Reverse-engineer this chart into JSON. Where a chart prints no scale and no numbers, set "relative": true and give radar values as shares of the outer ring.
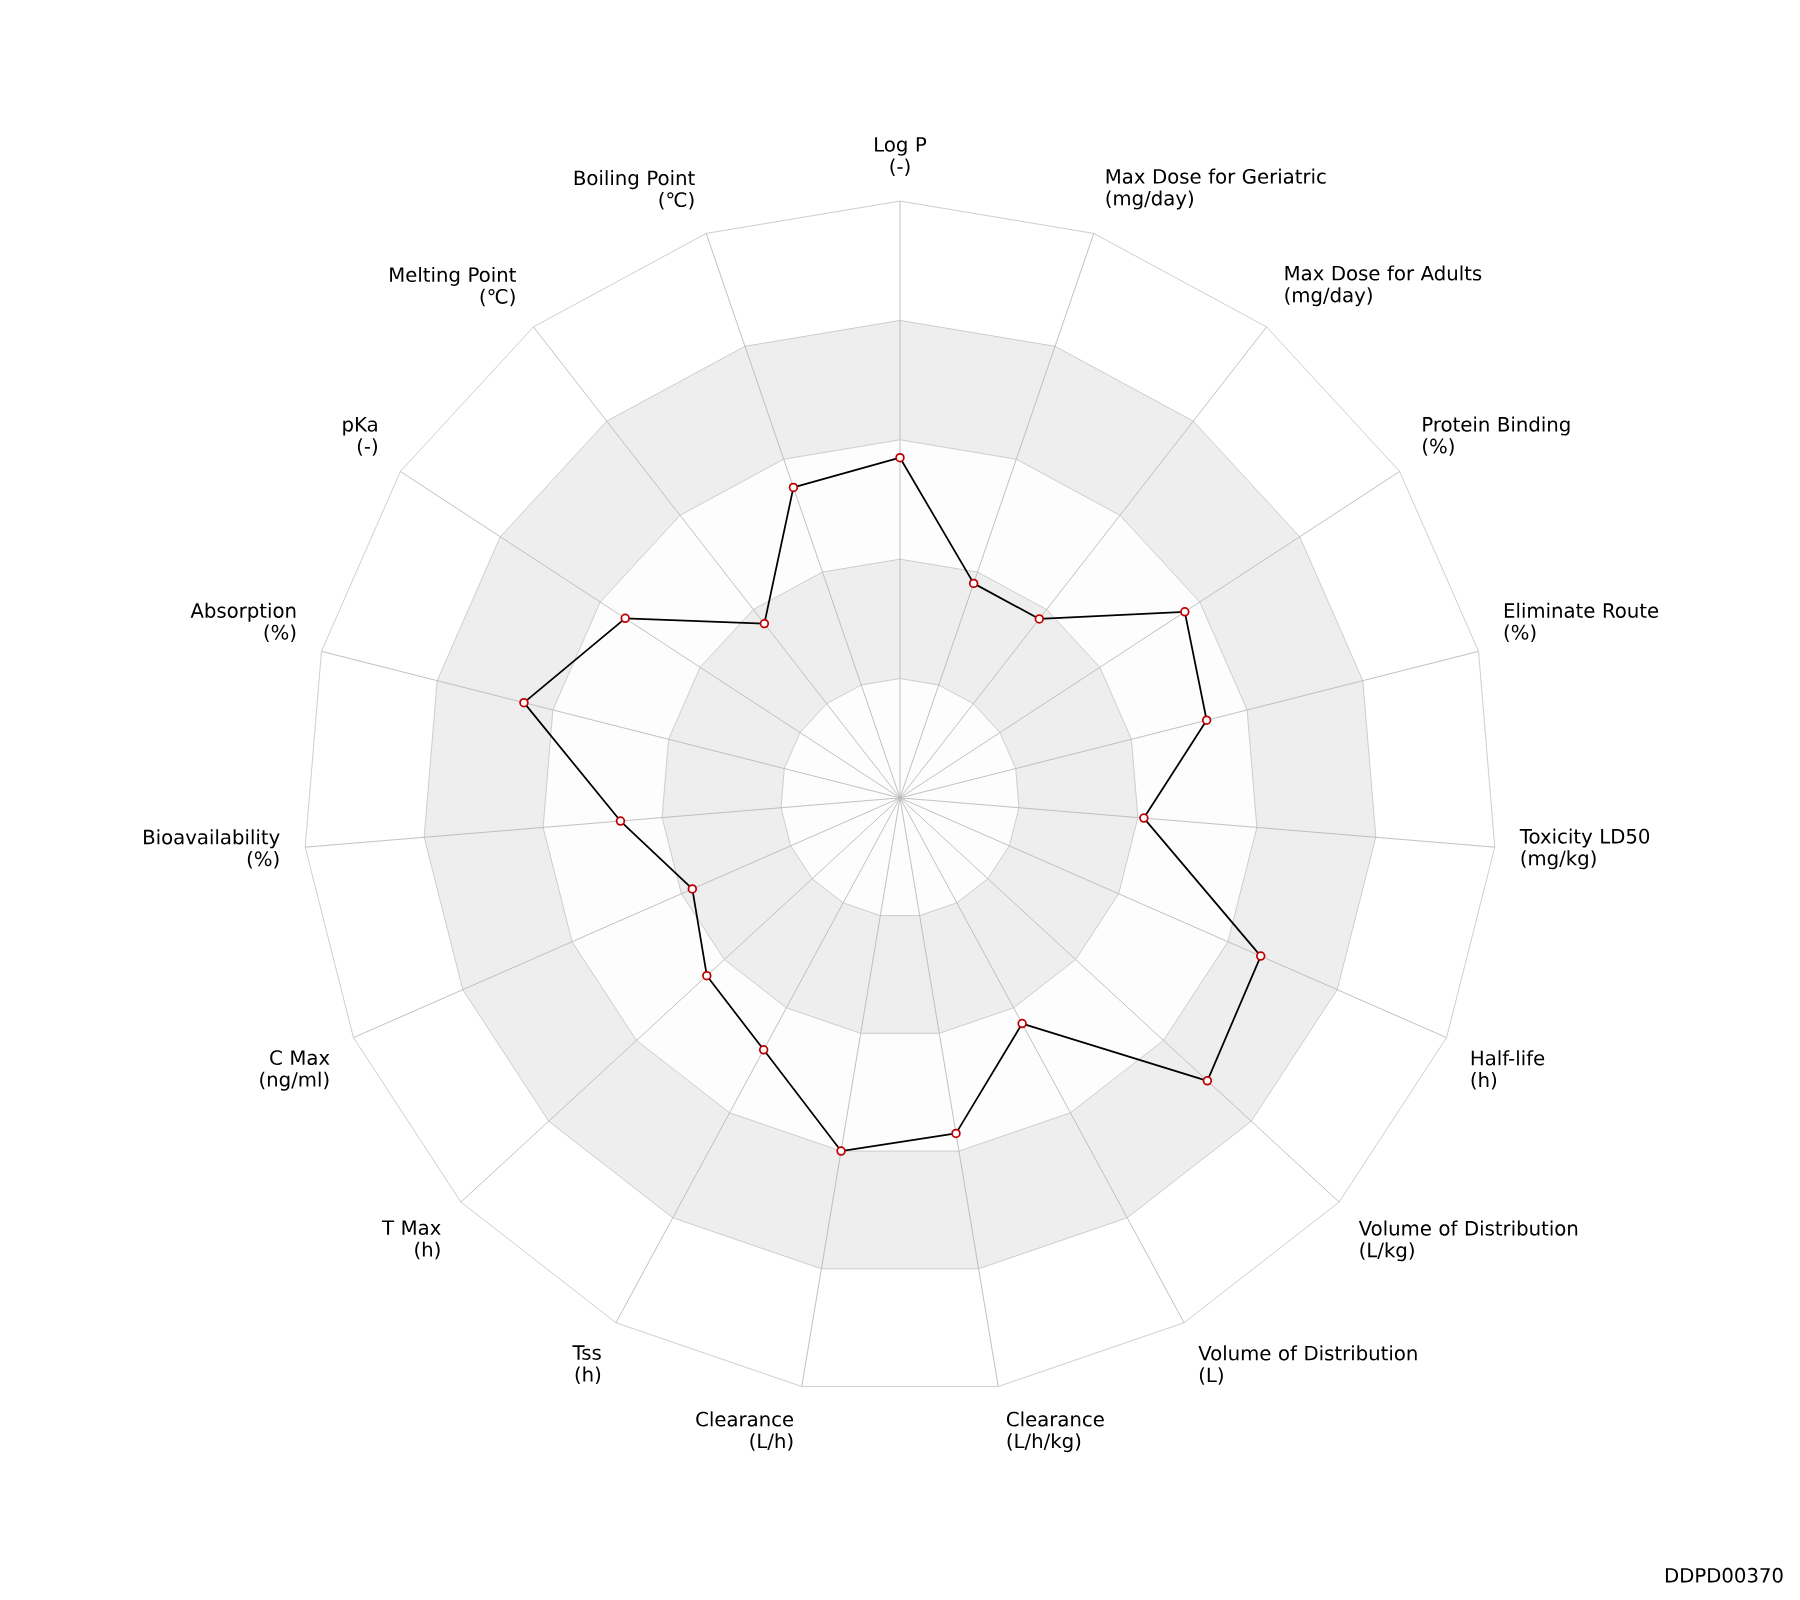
{
  "chart_data": {
    "type": "radar",
    "relative": true,
    "marker": "circle",
    "grid": true,
    "categories": [
      "Log P\n(-)",
      "Max Dose for Geriatric\n(mg/day)",
      "Max Dose for Adults\n(mg/day)",
      "Protein Binding\n(%)",
      "Eliminate Route\n(%)",
      "Toxicity LD50\n(mg/kg)",
      "Half-life\n(h)",
      "Volume of Distribution\n(L/kg)",
      "Volume of Distribution\n(L)",
      "Clearance\n(L/h/kg)",
      "Clearance\n(L/h)",
      "Tss\n(h)",
      "T Max\n(h)",
      "C Max\n(ng/ml)",
      "Bioavailability\n(%)",
      "Absorption\n(%)",
      "pKa\n(-)",
      "Melting Point\n(℃)",
      "Boiling Point\n(℃)"
    ],
    "series": [
      {
        "color": "#000000",
        "values": [
          0.57,
          0.38,
          0.38,
          0.57,
          0.53,
          0.41,
          0.66,
          0.7,
          0.43,
          0.57,
          0.6,
          0.48,
          0.44,
          0.38,
          0.47,
          0.65,
          0.55,
          0.37,
          0.55
        ]
      }
    ],
    "annotations": [
      "DDPD00370"
    ]
  }
}
